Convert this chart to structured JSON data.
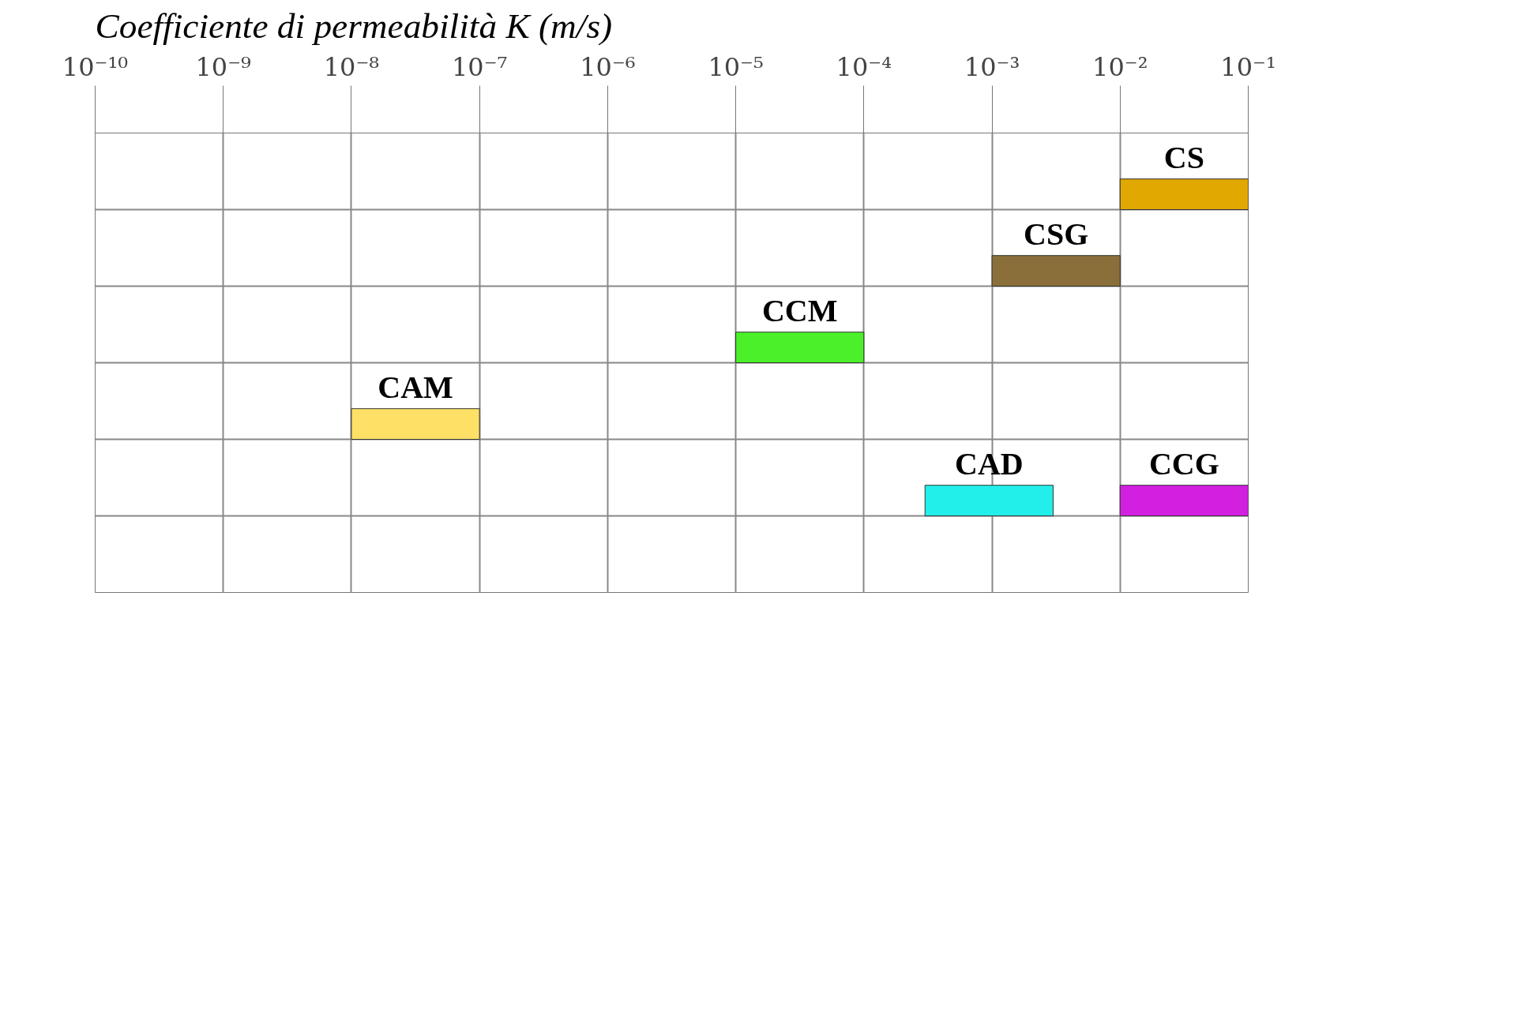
{
  "chart_data": {
    "type": "bar",
    "orientation": "horizontal",
    "title": "Coefficiente di permeabilità K (m/s)",
    "log": "x",
    "grid": true,
    "categories": [
      null,
      null,
      null,
      null,
      null,
      null
    ],
    "xlim": [
      1e-10,
      0.1
    ],
    "xticks": [
      {
        "value": 1e-10,
        "label": "10⁻¹⁰"
      },
      {
        "value": 1e-09,
        "label": "10⁻⁹"
      },
      {
        "value": 1e-08,
        "label": "10⁻⁸"
      },
      {
        "value": 1e-07,
        "label": "10⁻⁷"
      },
      {
        "value": 1e-06,
        "label": "10⁻⁶"
      },
      {
        "value": 1e-05,
        "label": "10⁻⁵"
      },
      {
        "value": 0.0001,
        "label": "10⁻⁴"
      },
      {
        "value": 0.001,
        "label": "10⁻³"
      },
      {
        "value": 0.01,
        "label": "10⁻²"
      },
      {
        "value": 0.1,
        "label": "10⁻¹"
      }
    ],
    "series": [
      {
        "name": "CS",
        "color": "#e0a800",
        "base": [
          0.01,
          null,
          null,
          null,
          null,
          null
        ],
        "values": [
          0.09,
          null,
          null,
          null,
          null,
          null
        ]
      },
      {
        "name": "CSG",
        "color": "#8b6f3a",
        "base": [
          null,
          0.001,
          null,
          null,
          null,
          null
        ],
        "values": [
          null,
          0.009,
          null,
          null,
          null,
          null
        ]
      },
      {
        "name": "CCM",
        "color": "#4cf02a",
        "base": [
          null,
          null,
          1e-05,
          null,
          null,
          null
        ],
        "values": [
          null,
          null,
          9e-05,
          null,
          null,
          null
        ]
      },
      {
        "name": "CAM",
        "color": "#ffe066",
        "base": [
          null,
          null,
          null,
          1e-08,
          null,
          null
        ],
        "values": [
          null,
          null,
          null,
          9e-08,
          null,
          null
        ]
      },
      {
        "name": "CAD",
        "color": "#22eeea",
        "base": [
          null,
          null,
          null,
          null,
          0.0003,
          null
        ],
        "values": [
          null,
          null,
          null,
          null,
          0.0027,
          null
        ]
      },
      {
        "name": "CCG",
        "color": "#d21fe0",
        "base": [
          null,
          null,
          null,
          null,
          0.01,
          null
        ],
        "values": [
          null,
          null,
          null,
          null,
          0.09,
          null
        ]
      }
    ]
  }
}
